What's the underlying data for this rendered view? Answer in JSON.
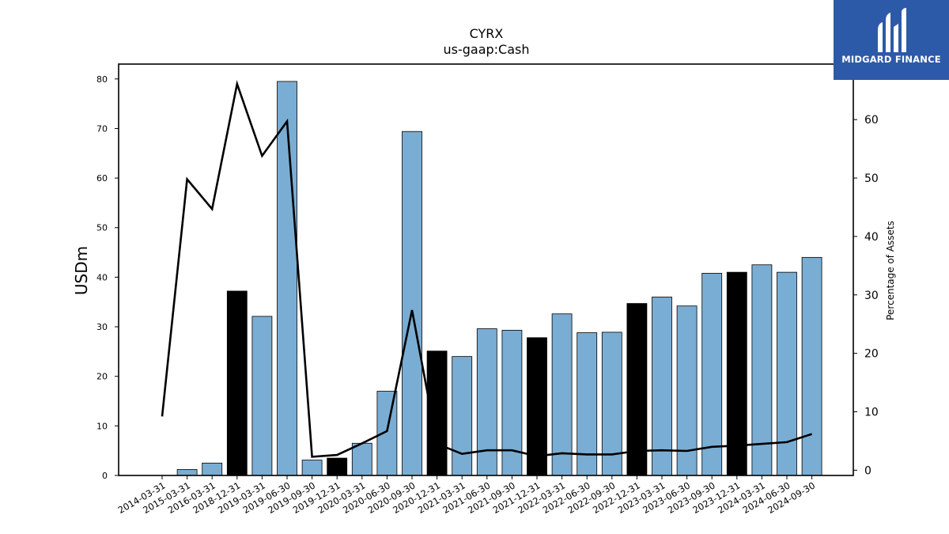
{
  "chart_data": {
    "type": "bar",
    "title": "CYRX",
    "subtitle": "us-gaap:Cash",
    "ylabel": "USDm",
    "y2label": "Percentage of Assets",
    "ylim": [
      0,
      83
    ],
    "y2lim": [
      -0.9,
      69.5
    ],
    "yticks": [
      0,
      10,
      20,
      30,
      40,
      50,
      60,
      70,
      80
    ],
    "y2ticks": [
      0,
      10,
      20,
      30,
      40,
      50,
      60
    ],
    "grid": false,
    "categories": [
      "2014-03-31",
      "2015-03-31",
      "2016-03-31",
      "2018-12-31",
      "2019-03-31",
      "2019-06-30",
      "2019-09-30",
      "2019-12-31",
      "2020-03-31",
      "2020-06-30",
      "2020-09-30",
      "2020-12-31",
      "2021-03-31",
      "2021-06-30",
      "2021-09-30",
      "2021-12-31",
      "2022-03-31",
      "2022-06-30",
      "2022-09-30",
      "2022-12-31",
      "2023-03-31",
      "2023-06-30",
      "2023-09-30",
      "2023-12-31",
      "2024-03-31",
      "2024-06-30",
      "2024-09-30"
    ],
    "series": [
      {
        "kind": "bar",
        "values": [
          0,
          1.2,
          2.5,
          37.2,
          32.1,
          79.5,
          3.1,
          3.5,
          6.5,
          17.0,
          69.4,
          25.1,
          24.0,
          29.6,
          29.3,
          27.8,
          32.6,
          28.8,
          28.9,
          34.7,
          36.0,
          34.2,
          40.8,
          41.0,
          42.5,
          41.0,
          44.0
        ],
        "highlight": [
          false,
          false,
          false,
          true,
          false,
          false,
          false,
          true,
          false,
          false,
          false,
          true,
          false,
          false,
          false,
          true,
          false,
          false,
          false,
          true,
          false,
          false,
          false,
          true,
          false,
          false,
          false
        ],
        "color": "#7aadd3",
        "highlight_color": "#000000"
      },
      {
        "kind": "line",
        "axis": "right",
        "values": [
          9.2,
          49.8,
          44.7,
          66.1,
          53.8,
          59.7,
          2.3,
          2.6,
          4.6,
          6.7,
          27.4,
          4.5,
          2.8,
          3.4,
          3.4,
          2.4,
          2.9,
          2.7,
          2.7,
          3.3,
          3.4,
          3.3,
          4.0,
          4.2,
          4.5,
          4.8,
          6.2
        ],
        "color": "#000000"
      }
    ]
  },
  "logo": {
    "text": "MIDGARD FINANCE"
  }
}
